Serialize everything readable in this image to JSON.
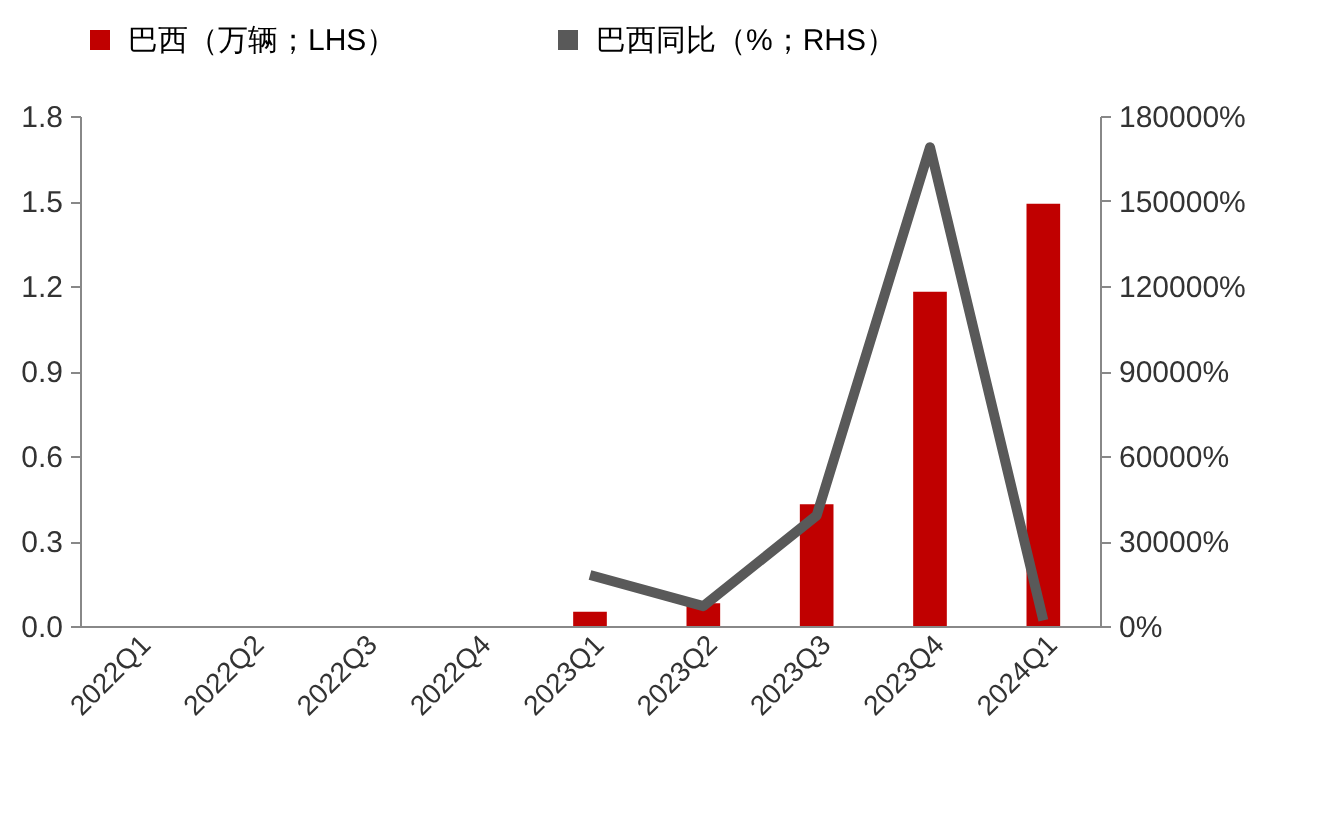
{
  "chart_data": {
    "type": "bar",
    "categories": [
      "2022Q1",
      "2022Q2",
      "2022Q3",
      "2022Q4",
      "2023Q1",
      "2023Q2",
      "2023Q3",
      "2023Q4",
      "2024Q1"
    ],
    "series": [
      {
        "name": "巴西（万辆；LHS）",
        "color": "#c00000",
        "values": [
          null,
          null,
          null,
          null,
          0.05,
          0.08,
          0.43,
          1.18,
          1.49
        ]
      },
      {
        "name": "巴西同比（%；RHS）",
        "type": "line",
        "axis": "y2",
        "color": "#595959",
        "values": [
          null,
          null,
          null,
          null,
          18000,
          7000,
          39000,
          169000,
          2000
        ]
      }
    ],
    "ylim": [
      0,
      1.8
    ],
    "yticks": [
      {
        "value": 0,
        "label": "0.0"
      },
      0.3,
      0.6,
      0.9,
      1.2,
      1.5,
      1.8
    ],
    "y2lim": [
      0,
      180000
    ],
    "y2ticks": [
      {
        "value": 0,
        "label": "0%"
      },
      {
        "value": 30000,
        "label": "30000%"
      },
      {
        "value": 60000,
        "label": "60000%"
      },
      {
        "value": 90000,
        "label": "90000%"
      },
      {
        "value": 120000,
        "label": "120000%"
      },
      {
        "value": 150000,
        "label": "150000%"
      },
      {
        "value": 180000,
        "label": "180000%"
      }
    ],
    "grid": false,
    "legend": "top",
    "marker": "none",
    "line_style": "solid"
  }
}
